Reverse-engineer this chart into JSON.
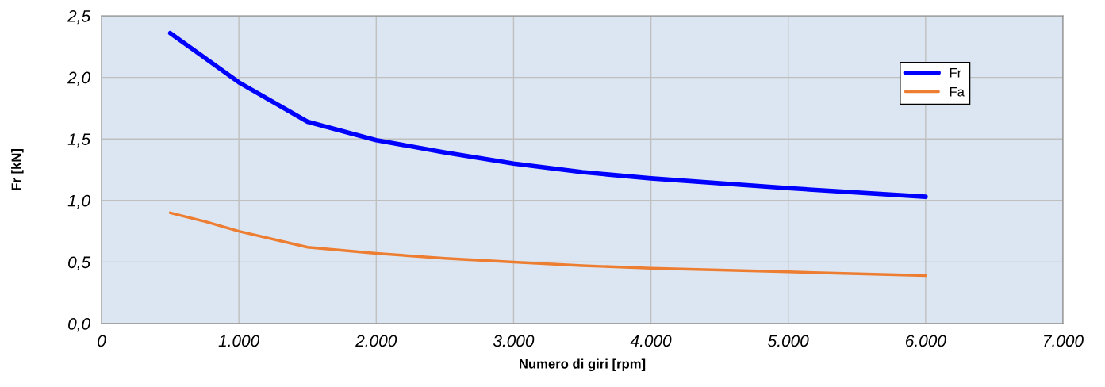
{
  "chart_data": {
    "type": "line",
    "xlabel": "Numero di giri [rpm]",
    "ylabel": "Fr [kN]",
    "xlim": [
      0,
      7000
    ],
    "ylim": [
      0,
      2.5
    ],
    "xticks": [
      0,
      {
        "value": 1000,
        "label": "1.000"
      },
      {
        "value": 2000,
        "label": "2.000"
      },
      {
        "value": 3000,
        "label": "3.000"
      },
      {
        "value": 4000,
        "label": "4.000"
      },
      {
        "value": 5000,
        "label": "5.000"
      },
      {
        "value": 6000,
        "label": "6.000"
      },
      {
        "value": 7000,
        "label": "7.000"
      }
    ],
    "yticks": [
      {
        "value": 0,
        "label": "0,0"
      },
      {
        "value": 0.5,
        "label": "0,5"
      },
      {
        "value": 1.0,
        "label": "1,0"
      },
      {
        "value": 1.5,
        "label": "1,5"
      },
      {
        "value": 2.0,
        "label": "2,0"
      },
      {
        "value": 2.5,
        "label": "2,5"
      }
    ],
    "x": [
      500,
      750,
      1000,
      1500,
      2000,
      2500,
      3000,
      3500,
      4000,
      5000,
      6000
    ],
    "series": [
      {
        "name": "Fr",
        "color": "#0000ff",
        "values": [
          2.36,
          2.16,
          1.96,
          1.64,
          1.49,
          1.39,
          1.3,
          1.23,
          1.18,
          1.1,
          1.03
        ]
      },
      {
        "name": "Fa",
        "color": "#ed7d31",
        "values": [
          0.9,
          0.83,
          0.75,
          0.62,
          0.57,
          0.53,
          0.5,
          0.47,
          0.45,
          0.42,
          0.39
        ]
      }
    ],
    "grid": true,
    "legend": "top right",
    "marker": "none",
    "line_style": "solid"
  }
}
